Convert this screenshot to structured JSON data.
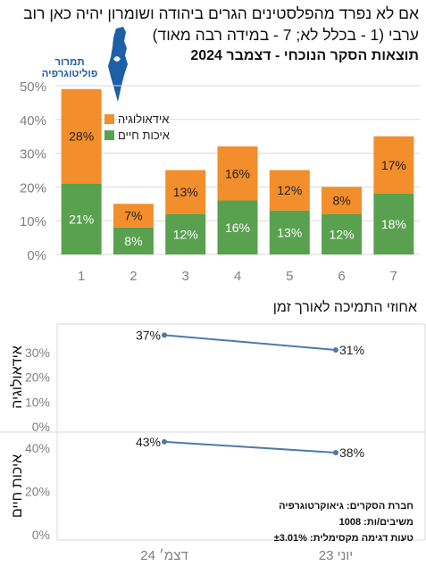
{
  "title": {
    "line1": "אם לא נפרד מהפלסטינים הגרים ביהודה ושומרון יהיה כאן רוב",
    "line2": "ערבי (1 - בכלל לא; 7 - במידה רבה מאוד)",
    "line3": "תוצאות הסקר הנוכחי - דצמבר 2024"
  },
  "logo": {
    "icon": "israel-map-with-hands-icon",
    "text": "תמרור פוליטוגרפיה",
    "color": "#1f5fa8"
  },
  "colors": {
    "ideology": "#f28e2b",
    "life": "#59a14f",
    "line": "#4e79a7",
    "grid": "#d9d9d9",
    "axis_text": "#808080"
  },
  "chart_data": [
    {
      "type": "bar",
      "stacked": true,
      "categories": [
        "1",
        "2",
        "3",
        "4",
        "5",
        "6",
        "7"
      ],
      "series": [
        {
          "name": "איכות חיים",
          "values": [
            21,
            8,
            12,
            16,
            13,
            12,
            18
          ],
          "labels": [
            "21%",
            "8%",
            "12%",
            "16%",
            "13%",
            "12%",
            "18%"
          ]
        },
        {
          "name": "אידאולוגיה",
          "values": [
            28,
            7,
            13,
            16,
            12,
            8,
            17
          ],
          "labels": [
            "28%",
            "7%",
            "13%",
            "16%",
            "12%",
            "8%",
            "17%"
          ]
        }
      ],
      "ylim": [
        0,
        50
      ],
      "yticks": [
        "0%",
        "10%",
        "20%",
        "30%",
        "40%",
        "50%"
      ],
      "legend_position": "top-left",
      "grid": true
    },
    {
      "type": "line",
      "title": "אחוזי התמיכה לאורך זמן",
      "x": [
        "דצמ׳ 24",
        "יוני 23"
      ],
      "panels": [
        {
          "name": "אידאולוגיה",
          "values": [
            37,
            31
          ],
          "labels": [
            "37%",
            "31%"
          ],
          "ylim": [
            0,
            40
          ],
          "yticks": [
            "0%",
            "10%",
            "20%",
            "30%"
          ]
        },
        {
          "name": "איכות חיים",
          "values": [
            43,
            38
          ],
          "labels": [
            "43%",
            "38%"
          ],
          "ylim": [
            0,
            45
          ],
          "yticks": [
            "0%",
            "20%",
            "40%"
          ]
        }
      ]
    }
  ],
  "credits": {
    "line1": "חברת הסקרים: גיאוקרטוגרפיה",
    "line2": "משיבים/ות: 1008",
    "line3": "טעות דגימה מקסימלית: ±3.01%"
  }
}
